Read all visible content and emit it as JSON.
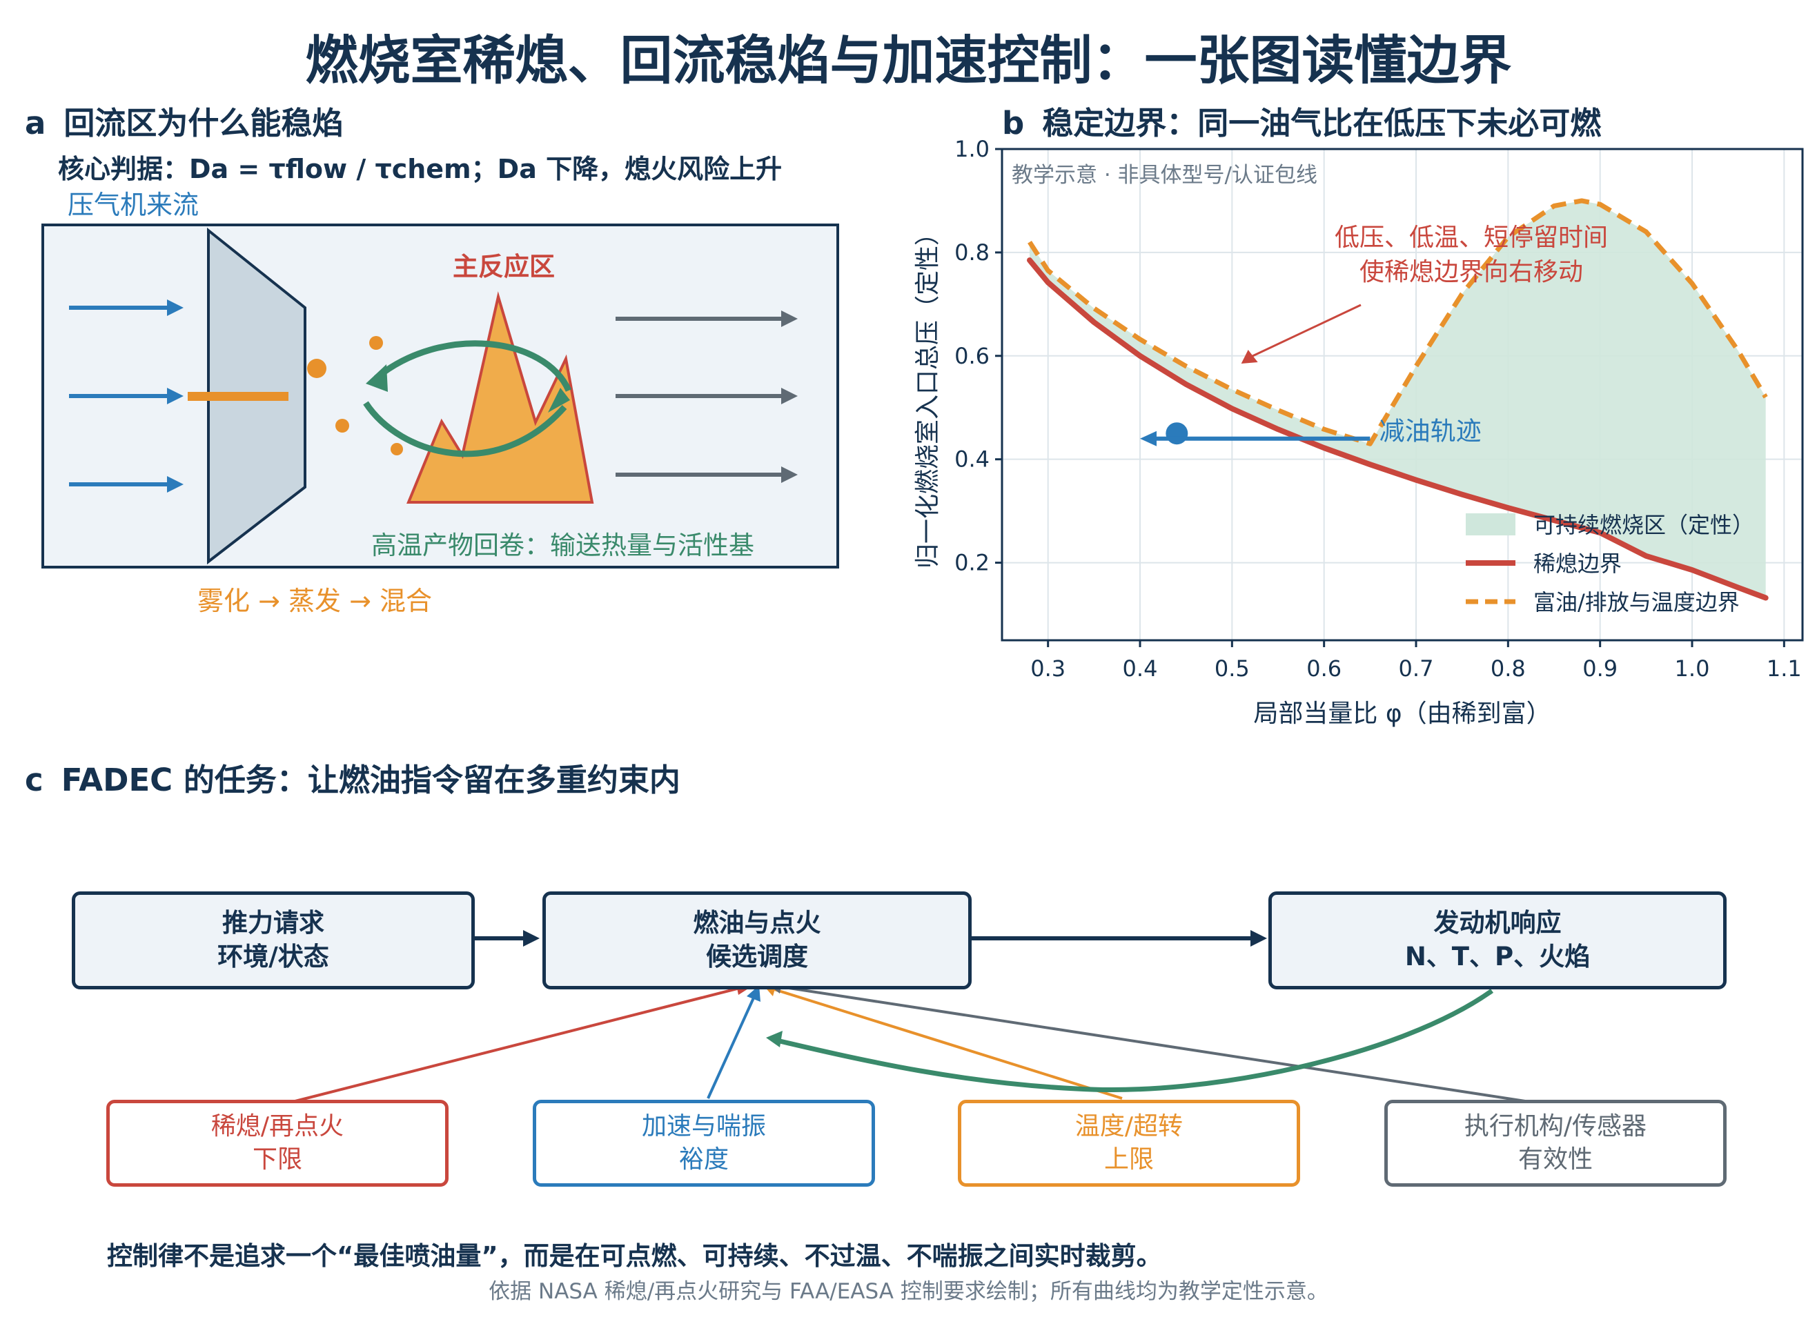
{
  "title": "燃烧室稀熄、回流稳焰与加速控制：一张图读懂边界",
  "panel_a": {
    "letter": "a",
    "title": "回流区为什么能稳焰",
    "key_judgment": "核心判据：Da = τflow / τchem；Da 下降，熄火风险上升",
    "inflow_label": "压气机来流",
    "main_zone_label": "主反应区",
    "recirc_label": "高温产物回卷：输送热量与活性基",
    "atomize_label": "雾化 → 蒸发 → 混合"
  },
  "panel_b": {
    "letter": "b",
    "title": "稳定边界：同一油气比在低压下未必可燃"
  },
  "chart_data": {
    "type": "line",
    "xlabel": "局部当量比 φ（由稀到富）",
    "ylabel": "归一化燃烧室入口总压（定性）",
    "xlim": [
      0.25,
      1.12
    ],
    "ylim": [
      0.05,
      1.0
    ],
    "xticks": [
      "0.3",
      "0.4",
      "0.5",
      "0.6",
      "0.7",
      "0.8",
      "0.9",
      "1.0",
      "1.1"
    ],
    "yticks": [
      "0.2",
      "0.4",
      "0.6",
      "0.8",
      "1.0"
    ],
    "grid": true,
    "note": "教学示意 · 非具体型号/认证包线",
    "annotation": "低压、低温、短停留时间\n使稀熄边界向右移动",
    "trajectory_label": "减油轨迹",
    "trajectory": {
      "start": [
        0.44,
        0.45
      ],
      "end": [
        0.4,
        0.44
      ]
    },
    "legend_position": "lower-right",
    "legend": [
      {
        "name": "可持续燃烧区（定性）",
        "color": "#cfe7dc"
      },
      {
        "name": "稀熄边界",
        "color": "#c9473d"
      },
      {
        "name": "富油/排放与温度边界",
        "color": "#e8912b"
      }
    ],
    "series": [
      {
        "name": "稀熄边界",
        "x": [
          0.28,
          0.3,
          0.35,
          0.4,
          0.45,
          0.5,
          0.55,
          0.6,
          0.65,
          0.7,
          0.75,
          0.8,
          0.85,
          0.9,
          0.95,
          1.0,
          1.05,
          1.08
        ],
        "y": [
          0.785,
          0.742,
          0.665,
          0.6,
          0.545,
          0.498,
          0.458,
          0.422,
          0.39,
          0.36,
          0.332,
          0.306,
          0.282,
          0.258,
          0.213,
          0.186,
          0.152,
          0.132
        ]
      },
      {
        "name": "富油/排放与温度边界",
        "x": [
          0.28,
          0.3,
          0.35,
          0.4,
          0.45,
          0.5,
          0.55,
          0.6,
          0.65,
          0.7,
          0.75,
          0.8,
          0.85,
          0.88,
          0.9,
          0.95,
          1.0,
          1.05,
          1.08
        ],
        "y": [
          0.82,
          0.765,
          0.692,
          0.632,
          0.58,
          0.535,
          0.495,
          0.458,
          0.43,
          0.58,
          0.72,
          0.83,
          0.89,
          0.9,
          0.893,
          0.84,
          0.74,
          0.61,
          0.52
        ]
      }
    ]
  },
  "panel_c": {
    "letter": "c",
    "title": "FADEC 的任务：让燃油指令留在多重约束内",
    "flow_boxes": [
      {
        "line1": "推力请求",
        "line2": "环境/状态"
      },
      {
        "line1": "燃油与点火",
        "line2": "候选调度"
      },
      {
        "line1": "发动机响应",
        "line2": "N、T、P、火焰"
      }
    ],
    "constraints": [
      {
        "line1": "稀熄/再点火",
        "line2": "下限",
        "color": "#c9473d"
      },
      {
        "line1": "加速与喘振",
        "line2": "裕度",
        "color": "#2b7bbb"
      },
      {
        "line1": "温度/超转",
        "line2": "上限",
        "color": "#e8912b"
      },
      {
        "line1": "执行机构/传感器",
        "line2": "有效性",
        "color": "#5f6a74"
      }
    ],
    "feedback_color": "#3a8a6b"
  },
  "bottom_note": "控制律不是追求一个“最佳喷油量”，而是在可点燃、可持续、不过温、不喘振之间实时裁剪。",
  "source_note": "依据 NASA 稀熄/再点火研究与 FAA/EASA 控制要求绘制；所有曲线均为教学定性示意。"
}
